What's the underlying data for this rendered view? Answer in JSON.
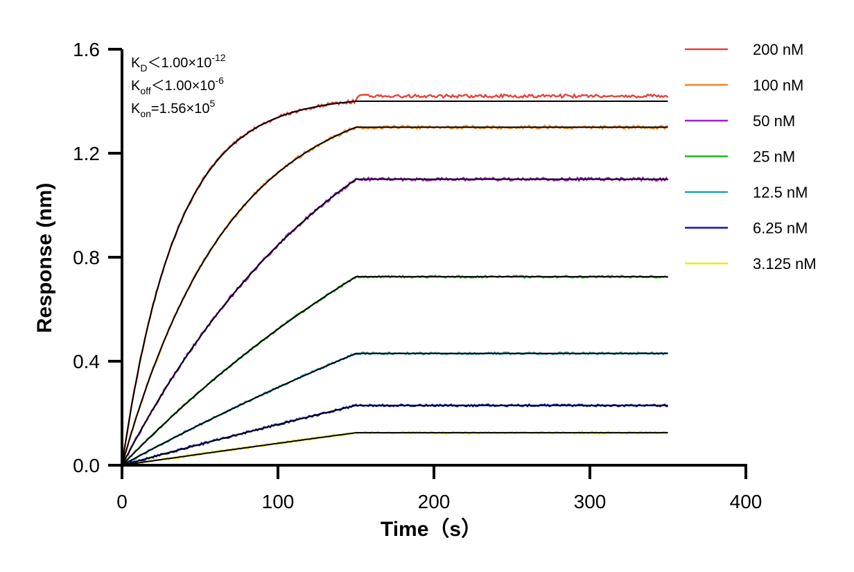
{
  "chart_data": {
    "type": "line",
    "xlabel": "Time（s）",
    "ylabel": "Response (nm)",
    "xlim": [
      0,
      400
    ],
    "ylim": [
      0,
      1.6
    ],
    "x_ticks": [
      "0",
      "100",
      "200",
      "300",
      "400"
    ],
    "y_ticks": [
      "0.0",
      "0.4",
      "0.8",
      "1.2",
      "1.6"
    ],
    "association_end_s": 150,
    "end_s": 350,
    "grid": false,
    "legend_position": "right",
    "annotations": {
      "kd": {
        "symbol": "K",
        "sub": "D",
        "text": "＜1.00×10",
        "sup": "-12"
      },
      "koff": {
        "symbol": "K",
        "sub": "off",
        "text": "＜1.00×10",
        "sup": "-6"
      },
      "kon": {
        "symbol": "K",
        "sub": "on",
        "text": "=1.56×10",
        "sup": "5"
      }
    },
    "fit_color": "#000000",
    "series": [
      {
        "name": "200 nM",
        "color": "#e8403a",
        "plateau": 1.4,
        "observed_plateau": 1.42,
        "tau": 35
      },
      {
        "name": "100 nM",
        "color": "#f58a1f",
        "plateau": 1.3,
        "observed_plateau": 1.3,
        "tau": 68
      },
      {
        "name": "50 nM",
        "color": "#9b1fd1",
        "plateau": 1.1,
        "observed_plateau": 1.1,
        "tau": 150
      },
      {
        "name": "25 nM",
        "color": "#1fb81f",
        "plateau": 0.725,
        "observed_plateau": 0.725,
        "tau": 290
      },
      {
        "name": "12.5 nM",
        "color": "#1e9fb4",
        "plateau": 0.43,
        "observed_plateau": 0.43,
        "tau": 560
      },
      {
        "name": "6.25 nM",
        "color": "#0a14c8",
        "plateau": 0.23,
        "observed_plateau": 0.23,
        "tau": 1100
      },
      {
        "name": "3.125 nM",
        "color": "#f2ea00",
        "plateau": 0.125,
        "observed_plateau": 0.125,
        "tau": 2200
      }
    ]
  }
}
